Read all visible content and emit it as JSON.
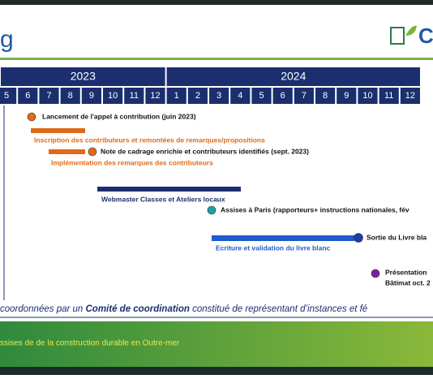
{
  "header": {
    "title": "g",
    "logo_text": "C"
  },
  "timeline": {
    "years": [
      "2023",
      "2024"
    ],
    "months": [
      "5",
      "6",
      "7",
      "8",
      "9",
      "10",
      "11",
      "12",
      "1",
      "2",
      "3",
      "4",
      "5",
      "6",
      "7",
      "8",
      "9",
      "10",
      "11",
      "12"
    ],
    "items": [
      {
        "label": "Lancement de l'appel à contribution (juin 2023)"
      },
      {
        "label": "Inscription des contributeurs et remontées de remarques/propositions"
      },
      {
        "label": "Note de cadrage enrichie et contributeurs identifiés (sept. 2023)"
      },
      {
        "label": "Implémentation des remarques des contributeurs"
      },
      {
        "label": "Webmaster Classes et Ateliers locaux"
      },
      {
        "label": "Assises à Paris (rapporteurs+ instructions nationales, fév"
      },
      {
        "label": "Sortie du Livre bla"
      },
      {
        "label": "Ecriture et validation du livre blanc"
      },
      {
        "label": "Présentation"
      },
      {
        "label": "Bâtimat oct. 2"
      }
    ]
  },
  "footer": {
    "note_parts": [
      "coordonnées par un ",
      "Comité de coordination",
      " constitué de représentant d’instances et fé"
    ],
    "banner": "ssises de de la construction durable en Outre-mer"
  }
}
